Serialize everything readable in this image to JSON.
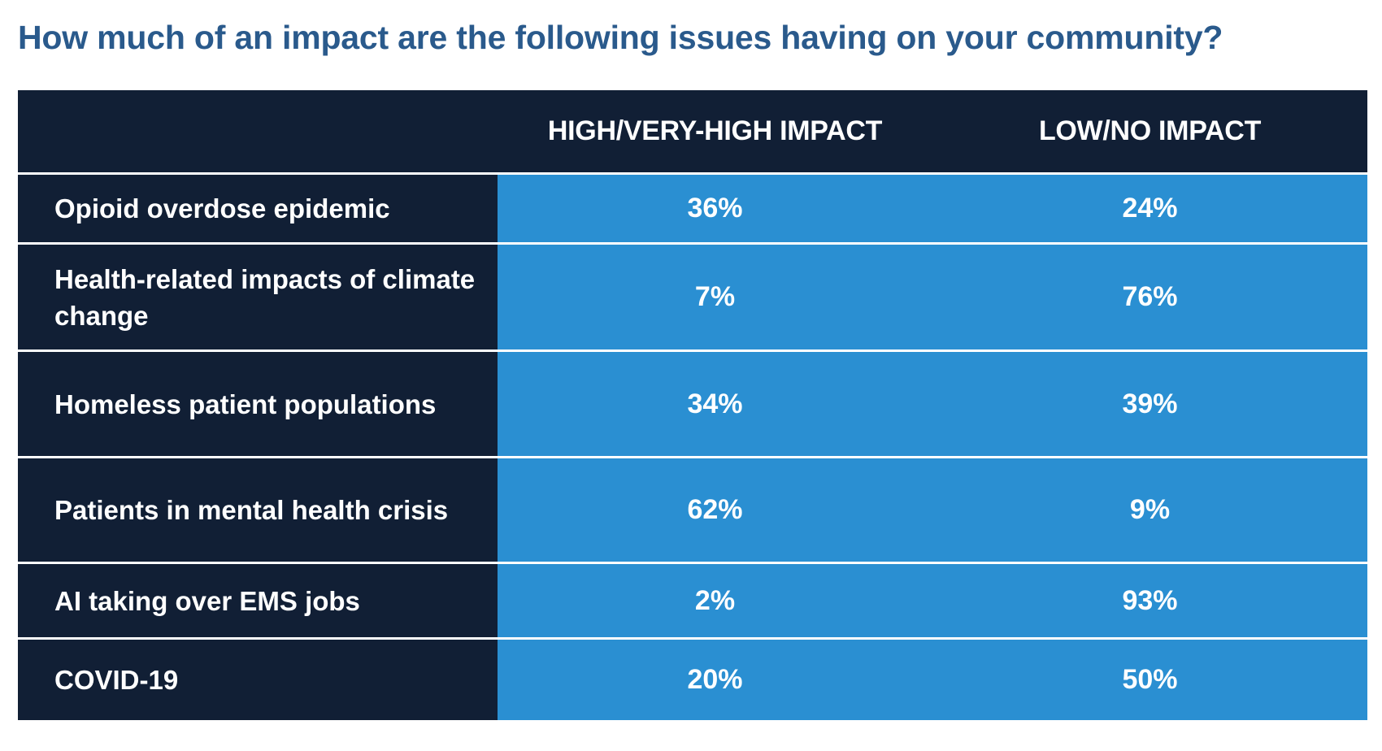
{
  "title": "How much of an impact are the following issues having on your community?",
  "columns": [
    "HIGH/VERY-HIGH IMPACT",
    "LOW/NO IMPACT"
  ],
  "rows": [
    {
      "label": "Opioid overdose epidemic",
      "high": "36%",
      "low": "24%"
    },
    {
      "label": "Health-related impacts of climate change",
      "high": "7%",
      "low": "76%"
    },
    {
      "label": "Homeless patient populations",
      "high": "34%",
      "low": "39%"
    },
    {
      "label": "Patients in mental health crisis",
      "high": "62%",
      "low": "9%"
    },
    {
      "label": "AI taking over EMS jobs",
      "high": "2%",
      "low": "93%"
    },
    {
      "label": "COVID-19",
      "high": "20%",
      "low": "50%"
    }
  ],
  "colors": {
    "title": "#2a5a8c",
    "dark": "#111f35",
    "blue": "#2a8fd2",
    "text": "#ffffff"
  },
  "chart_data": {
    "type": "table",
    "title": "How much of an impact are the following issues having on your community?",
    "columns": [
      "HIGH/VERY-HIGH IMPACT",
      "LOW/NO IMPACT"
    ],
    "categories": [
      "Opioid overdose epidemic",
      "Health-related impacts of climate change",
      "Homeless patient populations",
      "Patients in mental health crisis",
      "AI taking over EMS jobs",
      "COVID-19"
    ],
    "series": [
      {
        "name": "HIGH/VERY-HIGH IMPACT",
        "values": [
          36,
          7,
          34,
          62,
          2,
          20
        ]
      },
      {
        "name": "LOW/NO IMPACT",
        "values": [
          24,
          76,
          39,
          9,
          93,
          50
        ]
      }
    ],
    "unit": "%"
  }
}
